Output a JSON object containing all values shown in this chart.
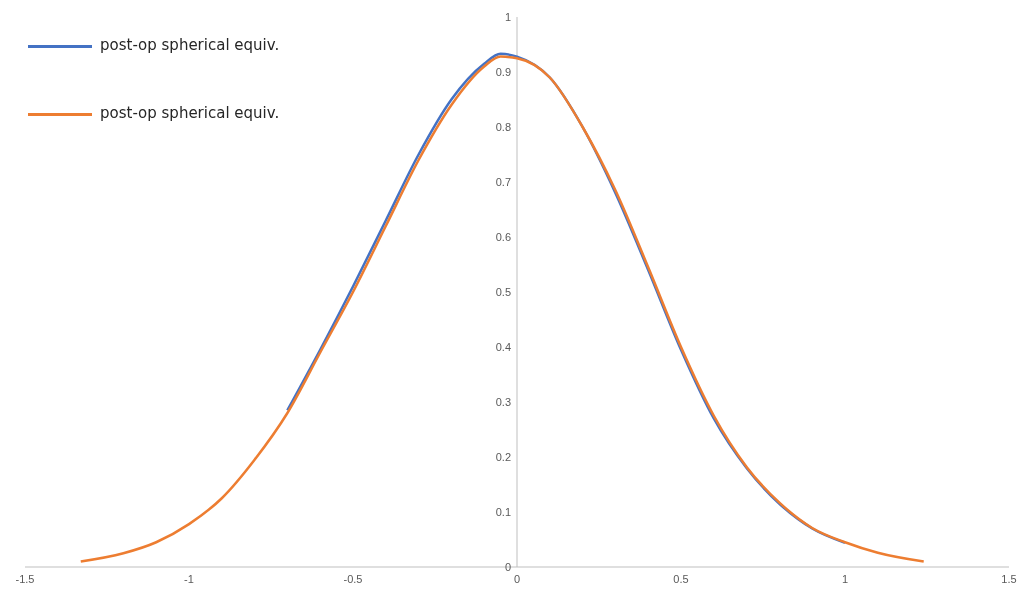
{
  "chart_data": {
    "type": "line",
    "x": [
      -1.33,
      -1.2,
      -1.1,
      -1,
      -0.9,
      -0.8,
      -0.7,
      -0.6,
      -0.5,
      -0.4,
      -0.3,
      -0.2,
      -0.1,
      -0.05,
      0,
      0.1,
      0.2,
      0.3,
      0.4,
      0.5,
      0.6,
      0.7,
      0.8,
      0.9,
      1,
      1.1,
      1.24
    ],
    "series": [
      {
        "name": "post-op spherical equiv.",
        "color": "#4472c4",
        "values": [
          null,
          null,
          null,
          null,
          null,
          null,
          0.285,
          0.395,
          0.51,
          0.63,
          0.75,
          0.85,
          0.915,
          0.933,
          0.928,
          0.89,
          0.8,
          0.68,
          0.54,
          0.395,
          0.27,
          0.18,
          0.115,
          0.07,
          0.044,
          null,
          null
        ]
      },
      {
        "name": "post-op spherical equiv.",
        "color": "#ed7d31",
        "values": [
          0.01,
          0.025,
          0.045,
          0.078,
          0.125,
          0.195,
          0.28,
          0.39,
          0.5,
          0.62,
          0.74,
          0.84,
          0.91,
          0.928,
          0.925,
          0.89,
          0.8,
          0.685,
          0.545,
          0.4,
          0.275,
          0.182,
          0.117,
          0.071,
          0.045,
          0.026,
          0.01
        ]
      }
    ],
    "xlim": [
      -1.5,
      1.5
    ],
    "xticks": [
      -1.5,
      -1,
      -0.5,
      0,
      0.5,
      1,
      1.5
    ],
    "ylim": [
      0,
      1
    ],
    "yticks": [
      0,
      0.1,
      0.2,
      0.3,
      0.4,
      0.5,
      0.6,
      0.7,
      0.8,
      0.9,
      1
    ],
    "grid": false,
    "legend": "top left",
    "marker": "none",
    "line_style": "solid"
  }
}
